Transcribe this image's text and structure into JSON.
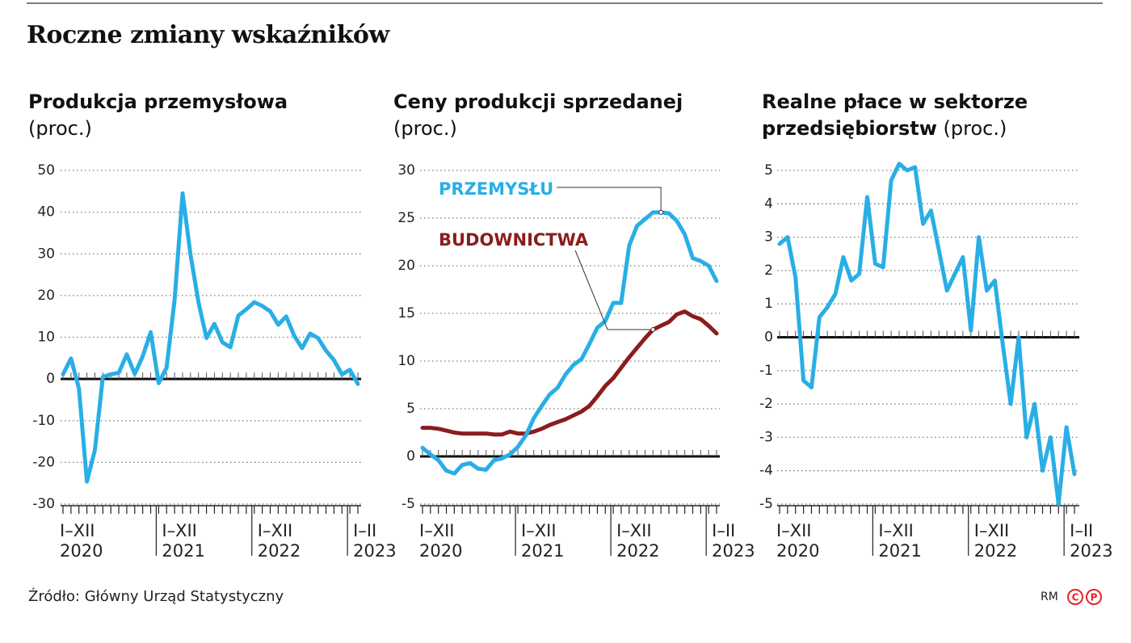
{
  "title": "Roczne zmiany wskaźników",
  "source": "Źródło: Główny Urząd Statystyczny",
  "credit": "RM",
  "chart_data": [
    {
      "type": "line",
      "title": "Produkcja przemysłowa",
      "subtitle": "(proc.)",
      "categories": [
        "I–XII\n2020",
        null,
        null,
        null,
        null,
        null,
        null,
        null,
        null,
        null,
        null,
        null,
        "I–XII\n2021",
        null,
        null,
        null,
        null,
        null,
        null,
        null,
        null,
        null,
        null,
        null,
        "I–XII\n2022",
        null,
        null,
        null,
        null,
        null,
        null,
        null,
        null,
        null,
        null,
        null,
        "I–II\n2023",
        null
      ],
      "values": [
        1.1,
        4.9,
        -2.3,
        -24.6,
        -17,
        0.5,
        1.1,
        1.5,
        5.9,
        1.2,
        5.4,
        11.2,
        -1.0,
        2.7,
        18.9,
        44.5,
        29.8,
        18.4,
        9.8,
        13.2,
        8.8,
        7.6,
        15.2,
        16.7,
        18.4,
        17.5,
        16.2,
        13.0,
        15.0,
        10.4,
        7.4,
        10.9,
        9.8,
        6.8,
        4.5,
        1.1,
        2.2,
        -1.2
      ],
      "color": "#29aee6",
      "ylim": [
        -30,
        50
      ],
      "yticks": [
        -30,
        -20,
        -10,
        0,
        10,
        20,
        30,
        40,
        50
      ],
      "grid": true
    },
    {
      "type": "line",
      "title": "Ceny produkcji sprzedanej",
      "subtitle": "(proc.)",
      "categories": [
        "I–XII\n2020",
        null,
        null,
        null,
        null,
        null,
        null,
        null,
        null,
        null,
        null,
        null,
        "I–XII\n2021",
        null,
        null,
        null,
        null,
        null,
        null,
        null,
        null,
        null,
        null,
        null,
        "I–XII\n2022",
        null,
        null,
        null,
        null,
        null,
        null,
        null,
        null,
        null,
        null,
        null,
        "I–II\n2023",
        null
      ],
      "series": [
        {
          "name": "PRZEMYSŁU",
          "color": "#29aee6",
          "values": [
            0.9,
            0.2,
            -0.4,
            -1.5,
            -1.8,
            -0.9,
            -0.7,
            -1.3,
            -1.4,
            -0.4,
            -0.2,
            0.2,
            1.0,
            2.2,
            4.0,
            5.3,
            6.5,
            7.2,
            8.6,
            9.6,
            10.2,
            11.8,
            13.5,
            14.2,
            16.1,
            16.1,
            22.1,
            24.2,
            24.9,
            25.6,
            25.6,
            25.5,
            24.7,
            23.3,
            20.8,
            20.5,
            20.0,
            18.4
          ]
        },
        {
          "name": "BUDOWNICTWA",
          "color": "#8b1c1c",
          "values": [
            3.0,
            3.0,
            2.9,
            2.7,
            2.5,
            2.4,
            2.4,
            2.4,
            2.4,
            2.3,
            2.3,
            2.6,
            2.4,
            2.4,
            2.6,
            2.9,
            3.3,
            3.6,
            3.9,
            4.3,
            4.7,
            5.3,
            6.3,
            7.4,
            8.2,
            9.3,
            10.4,
            11.4,
            12.4,
            13.3,
            13.7,
            14.1,
            14.9,
            15.2,
            14.7,
            14.4,
            13.7,
            12.9
          ]
        }
      ],
      "ylim": [
        -5,
        30
      ],
      "yticks": [
        -5,
        0,
        5,
        10,
        15,
        20,
        25,
        30
      ],
      "grid": true
    },
    {
      "type": "line",
      "title": "Realne płace w sektorze przedsiębiorstw",
      "subtitle": "(proc.)",
      "categories": [
        "I–XII\n2020",
        null,
        null,
        null,
        null,
        null,
        null,
        null,
        null,
        null,
        null,
        null,
        "I–XII\n2021",
        null,
        null,
        null,
        null,
        null,
        null,
        null,
        null,
        null,
        null,
        null,
        "I–XII\n2022",
        null,
        null,
        null,
        null,
        null,
        null,
        null,
        null,
        null,
        null,
        null,
        "I–II\n2023",
        null
      ],
      "values": [
        2.8,
        3.0,
        1.8,
        -1.3,
        -1.5,
        0.6,
        0.9,
        1.3,
        2.4,
        1.7,
        1.9,
        4.2,
        2.2,
        2.1,
        4.7,
        5.2,
        5.0,
        5.1,
        3.4,
        3.8,
        2.6,
        1.4,
        1.9,
        2.4,
        0.2,
        3.0,
        1.4,
        1.7,
        -0.2,
        -2.0,
        0.0,
        -3.0,
        -2.0,
        -4.0,
        -3.0,
        -5.0,
        -2.7,
        -4.1
      ],
      "color": "#29aee6",
      "ylim": [
        -5,
        5
      ],
      "yticks": [
        -5,
        -4,
        -3,
        -2,
        -1,
        0,
        1,
        2,
        3,
        4,
        5
      ],
      "grid": true
    }
  ]
}
